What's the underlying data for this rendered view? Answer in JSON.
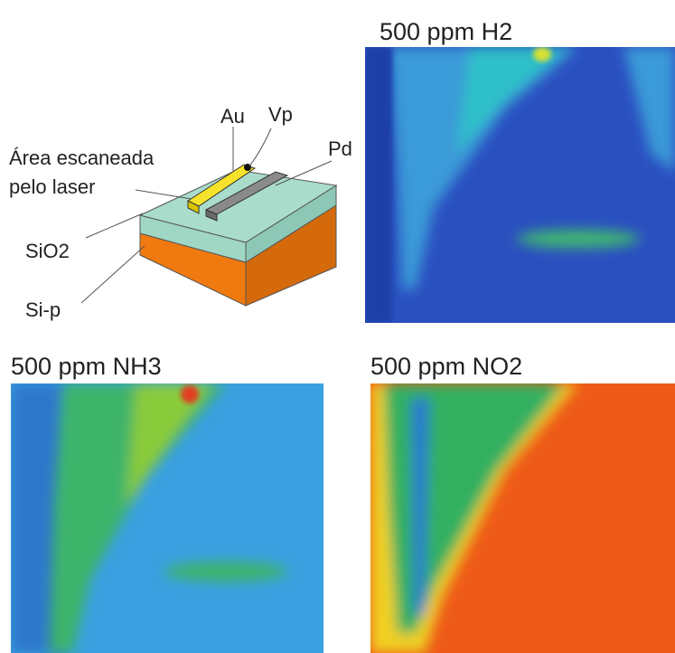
{
  "device": {
    "labels": {
      "gold": "Au",
      "probe": "Vp",
      "palladium": "Pd",
      "scan_line1": "Área escaneada",
      "scan_line2": "pelo laser",
      "oxide": "SiO2",
      "substrate": "Si-p"
    }
  },
  "panels": [
    {
      "title": "500 ppm H2"
    },
    {
      "title": "500 ppm NH3"
    },
    {
      "title": "500 ppm NO2"
    }
  ]
}
